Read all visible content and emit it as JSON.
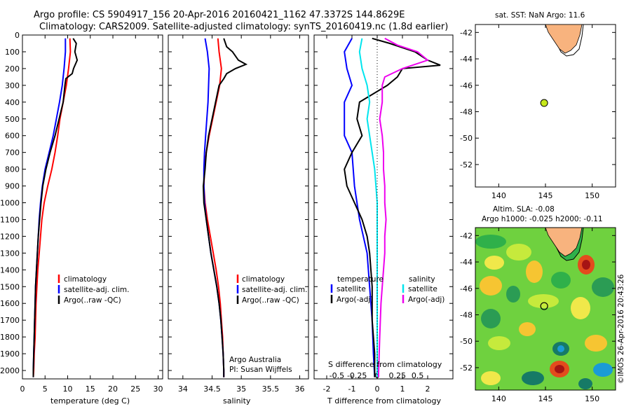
{
  "header": {
    "line1": "Argo profile: CS 5904917_156 20-Apr-2016 20160421_1162 47.3372S 144.8629E",
    "line2": "Climatology: CARS2009. Satellite-adjusted climatology: synTS_20160419.nc (1.8d earlier)"
  },
  "colors": {
    "climatology": "#ff0000",
    "satellite": "#0000ff",
    "argo": "#000000",
    "sal_satellite": "#00e5ee",
    "sal_argo": "#ee00ee",
    "land": "#f8b37e",
    "float_marker": "#c6e81b"
  },
  "chart_data": [
    {
      "type": "line",
      "id": "temperature-panel",
      "xlabel": "temperature (deg C)",
      "xlim": [
        0,
        31
      ],
      "ylim": [
        2050,
        0
      ],
      "xticks": [
        "0",
        "5",
        "10",
        "15",
        "20",
        "25",
        "30"
      ],
      "yticks": [
        "0",
        "100",
        "200",
        "300",
        "400",
        "500",
        "600",
        "700",
        "800",
        "900",
        "1000",
        "1100",
        "1200",
        "1300",
        "1400",
        "1500",
        "1600",
        "1700",
        "1800",
        "1900",
        "2000"
      ],
      "legend": [
        "climatology",
        "satellite-adj. clim.",
        "Argo(..raw -QC)"
      ],
      "series": [
        {
          "name": "climatology",
          "color": "climatology",
          "points": [
            [
              10.5,
              20
            ],
            [
              10.6,
              100
            ],
            [
              10.2,
              200
            ],
            [
              9.7,
              300
            ],
            [
              9.0,
              400
            ],
            [
              8.3,
              500
            ],
            [
              7.8,
              600
            ],
            [
              7.2,
              700
            ],
            [
              6.5,
              800
            ],
            [
              5.6,
              900
            ],
            [
              4.8,
              1000
            ],
            [
              4.3,
              1100
            ],
            [
              4.0,
              1200
            ],
            [
              3.7,
              1300
            ],
            [
              3.4,
              1400
            ],
            [
              3.2,
              1500
            ],
            [
              3.0,
              1600
            ],
            [
              2.9,
              1700
            ],
            [
              2.8,
              1800
            ],
            [
              2.6,
              1900
            ],
            [
              2.5,
              2000
            ],
            [
              2.4,
              2040
            ]
          ]
        },
        {
          "name": "satellite-adj. clim.",
          "color": "satellite",
          "points": [
            [
              9.5,
              20
            ],
            [
              9.5,
              100
            ],
            [
              9.2,
              200
            ],
            [
              8.8,
              300
            ],
            [
              8.2,
              400
            ],
            [
              7.5,
              500
            ],
            [
              6.8,
              600
            ],
            [
              5.9,
              700
            ],
            [
              5.0,
              800
            ],
            [
              4.4,
              900
            ],
            [
              4.0,
              1000
            ],
            [
              3.7,
              1100
            ],
            [
              3.5,
              1200
            ],
            [
              3.3,
              1300
            ],
            [
              3.1,
              1400
            ],
            [
              2.9,
              1500
            ],
            [
              2.8,
              1600
            ],
            [
              2.7,
              1700
            ],
            [
              2.6,
              1800
            ],
            [
              2.5,
              1900
            ],
            [
              2.4,
              2000
            ],
            [
              2.4,
              2040
            ]
          ]
        },
        {
          "name": "Argo(..raw -QC)",
          "color": "argo",
          "points": [
            [
              11.2,
              20
            ],
            [
              11.9,
              50
            ],
            [
              11.6,
              100
            ],
            [
              12.1,
              150
            ],
            [
              11.3,
              200
            ],
            [
              11.0,
              230
            ],
            [
              9.6,
              260
            ],
            [
              9.4,
              300
            ],
            [
              9.0,
              400
            ],
            [
              8.1,
              500
            ],
            [
              7.2,
              600
            ],
            [
              6.1,
              700
            ],
            [
              5.2,
              800
            ],
            [
              4.5,
              900
            ],
            [
              4.1,
              1000
            ],
            [
              3.8,
              1100
            ],
            [
              3.5,
              1200
            ],
            [
              3.3,
              1300
            ],
            [
              3.1,
              1400
            ],
            [
              2.9,
              1500
            ],
            [
              2.8,
              1600
            ],
            [
              2.7,
              1700
            ],
            [
              2.6,
              1800
            ],
            [
              2.5,
              1900
            ],
            [
              2.4,
              2000
            ],
            [
              2.4,
              2040
            ]
          ]
        }
      ]
    },
    {
      "type": "line",
      "id": "salinity-panel",
      "xlabel": "salinity",
      "xlim": [
        33.75,
        36.15
      ],
      "ylim": [
        2050,
        0
      ],
      "xticks": [
        "34",
        "34.5",
        "35",
        "35.5",
        "36"
      ],
      "legend": [
        "climatology",
        "satellite-adj. clim.",
        "Argo(..raw -QC)"
      ],
      "annotation": [
        "Argo Australia",
        "PI: Susan Wijffels"
      ],
      "series": [
        {
          "name": "climatology",
          "color": "climatology",
          "points": [
            [
              34.6,
              20
            ],
            [
              34.62,
              100
            ],
            [
              34.66,
              200
            ],
            [
              34.63,
              300
            ],
            [
              34.57,
              400
            ],
            [
              34.51,
              500
            ],
            [
              34.45,
              600
            ],
            [
              34.4,
              700
            ],
            [
              34.37,
              800
            ],
            [
              34.36,
              900
            ],
            [
              34.38,
              1000
            ],
            [
              34.42,
              1100
            ],
            [
              34.47,
              1200
            ],
            [
              34.52,
              1300
            ],
            [
              34.57,
              1400
            ],
            [
              34.61,
              1500
            ],
            [
              34.64,
              1600
            ],
            [
              34.66,
              1700
            ],
            [
              34.68,
              1800
            ],
            [
              34.69,
              1900
            ],
            [
              34.7,
              2000
            ],
            [
              34.7,
              2040
            ]
          ]
        },
        {
          "name": "satellite-adj. clim.",
          "color": "satellite",
          "points": [
            [
              34.38,
              20
            ],
            [
              34.42,
              100
            ],
            [
              34.45,
              200
            ],
            [
              34.44,
              300
            ],
            [
              34.43,
              400
            ],
            [
              34.41,
              500
            ],
            [
              34.39,
              600
            ],
            [
              34.37,
              700
            ],
            [
              34.36,
              800
            ],
            [
              34.36,
              900
            ],
            [
              34.37,
              1000
            ],
            [
              34.4,
              1100
            ],
            [
              34.44,
              1200
            ],
            [
              34.48,
              1300
            ],
            [
              34.53,
              1400
            ],
            [
              34.58,
              1500
            ],
            [
              34.62,
              1600
            ],
            [
              34.65,
              1700
            ],
            [
              34.67,
              1800
            ],
            [
              34.69,
              1900
            ],
            [
              34.7,
              2000
            ],
            [
              34.7,
              2040
            ]
          ]
        },
        {
          "name": "Argo(..raw -QC)",
          "color": "argo",
          "points": [
            [
              34.7,
              20
            ],
            [
              34.75,
              70
            ],
            [
              34.85,
              100
            ],
            [
              34.95,
              150
            ],
            [
              35.08,
              175
            ],
            [
              34.9,
              200
            ],
            [
              34.75,
              230
            ],
            [
              34.7,
              260
            ],
            [
              34.62,
              300
            ],
            [
              34.56,
              400
            ],
            [
              34.5,
              500
            ],
            [
              34.44,
              600
            ],
            [
              34.4,
              700
            ],
            [
              34.38,
              800
            ],
            [
              34.35,
              900
            ],
            [
              34.36,
              1000
            ],
            [
              34.4,
              1100
            ],
            [
              34.44,
              1200
            ],
            [
              34.48,
              1300
            ],
            [
              34.53,
              1400
            ],
            [
              34.58,
              1500
            ],
            [
              34.62,
              1600
            ],
            [
              34.65,
              1700
            ],
            [
              34.67,
              1800
            ],
            [
              34.69,
              1900
            ],
            [
              34.7,
              2000
            ],
            [
              34.7,
              2040
            ]
          ]
        }
      ]
    },
    {
      "type": "line",
      "id": "difference-panel",
      "xlabel": "T difference from climatology",
      "xlabel_top": "S difference from climatology",
      "xlim": [
        -2.5,
        3.0
      ],
      "ylim": [
        2050,
        0
      ],
      "xticks": [
        "-2",
        "-1",
        "0",
        "1",
        "2"
      ],
      "sticks": [
        "-0.5",
        "-0.25",
        "0",
        "0.25",
        "0.5"
      ],
      "legend_temperature": {
        "title": "temperature",
        "items": [
          "satellite",
          "Argo(-adj)"
        ]
      },
      "legend_salinity": {
        "title": "salinity",
        "items": [
          "satellite",
          "Argo(-adj)"
        ]
      },
      "series": [
        {
          "name": "temperature satellite",
          "color": "satellite",
          "points": [
            [
              -1.0,
              20
            ],
            [
              -1.3,
              100
            ],
            [
              -1.2,
              200
            ],
            [
              -1.0,
              300
            ],
            [
              -1.3,
              400
            ],
            [
              -1.3,
              500
            ],
            [
              -1.3,
              600
            ],
            [
              -1.0,
              700
            ],
            [
              -0.9,
              900
            ],
            [
              -0.7,
              1100
            ],
            [
              -0.4,
              1300
            ],
            [
              -0.3,
              1500
            ],
            [
              -0.2,
              1700
            ],
            [
              -0.15,
              1900
            ],
            [
              -0.1,
              2040
            ]
          ]
        },
        {
          "name": "temperature Argo(-adj)",
          "color": "argo",
          "points": [
            [
              -0.2,
              20
            ],
            [
              0.5,
              50
            ],
            [
              1.5,
              100
            ],
            [
              2.0,
              150
            ],
            [
              2.5,
              180
            ],
            [
              1.0,
              200
            ],
            [
              0.8,
              250
            ],
            [
              0.4,
              300
            ],
            [
              -0.7,
              400
            ],
            [
              -0.8,
              500
            ],
            [
              -0.6,
              600
            ],
            [
              -1.0,
              700
            ],
            [
              -1.3,
              800
            ],
            [
              -1.2,
              900
            ],
            [
              -0.9,
              1000
            ],
            [
              -0.6,
              1100
            ],
            [
              -0.4,
              1200
            ],
            [
              -0.3,
              1300
            ],
            [
              -0.2,
              1500
            ],
            [
              -0.2,
              1700
            ],
            [
              -0.1,
              1900
            ],
            [
              -0.1,
              2040
            ]
          ]
        },
        {
          "name": "salinity satellite",
          "color": "sal_satellite",
          "points": [
            [
              -0.6,
              20
            ],
            [
              -0.7,
              100
            ],
            [
              -0.6,
              200
            ],
            [
              -0.4,
              300
            ],
            [
              -0.3,
              400
            ],
            [
              -0.4,
              500
            ],
            [
              -0.3,
              600
            ],
            [
              -0.2,
              700
            ],
            [
              -0.1,
              800
            ],
            [
              -0.05,
              900
            ],
            [
              0.0,
              1000
            ],
            [
              0.0,
              1200
            ],
            [
              0.0,
              1400
            ],
            [
              0.0,
              1600
            ],
            [
              0.0,
              1800
            ],
            [
              0.0,
              2040
            ]
          ]
        },
        {
          "name": "salinity Argo(-adj)",
          "color": "sal_argo",
          "points": [
            [
              0.3,
              20
            ],
            [
              0.8,
              60
            ],
            [
              1.6,
              100
            ],
            [
              2.0,
              150
            ],
            [
              1.0,
              200
            ],
            [
              0.3,
              250
            ],
            [
              0.2,
              300
            ],
            [
              0.2,
              400
            ],
            [
              0.1,
              500
            ],
            [
              0.2,
              600
            ],
            [
              0.25,
              700
            ],
            [
              0.25,
              800
            ],
            [
              0.3,
              900
            ],
            [
              0.3,
              1000
            ],
            [
              0.35,
              1100
            ],
            [
              0.3,
              1200
            ],
            [
              0.3,
              1300
            ],
            [
              0.25,
              1400
            ],
            [
              0.2,
              1500
            ],
            [
              0.15,
              1600
            ],
            [
              0.1,
              1800
            ],
            [
              0.05,
              2040
            ]
          ]
        }
      ]
    },
    {
      "type": "scatter",
      "id": "sst-map",
      "title": "sat. SST: NaN Argo: 11.6",
      "xlim": [
        137.5,
        152.5
      ],
      "ylim": [
        -53.7,
        -41.4
      ],
      "xticks": [
        "140",
        "145",
        "150"
      ],
      "yticks": [
        "-42",
        "-44",
        "-46",
        "-48",
        "-50",
        "-52"
      ],
      "float_position": [
        144.86,
        -47.34
      ]
    },
    {
      "type": "heatmap",
      "id": "sla-map",
      "title_line1": "Altim. SLA: -0.08",
      "title_line2": "Argo h1000: -0.025 h2000: -0.11",
      "xlim": [
        137.5,
        152.5
      ],
      "ylim": [
        -53.7,
        -41.4
      ],
      "xticks": [
        "140",
        "145",
        "150"
      ],
      "yticks": [
        "-42",
        "-44",
        "-46",
        "-48",
        "-50",
        "-52"
      ],
      "float_position": [
        144.86,
        -47.34
      ],
      "side_label": "©IMOS 26-Apr-2016 20:43:26"
    }
  ]
}
